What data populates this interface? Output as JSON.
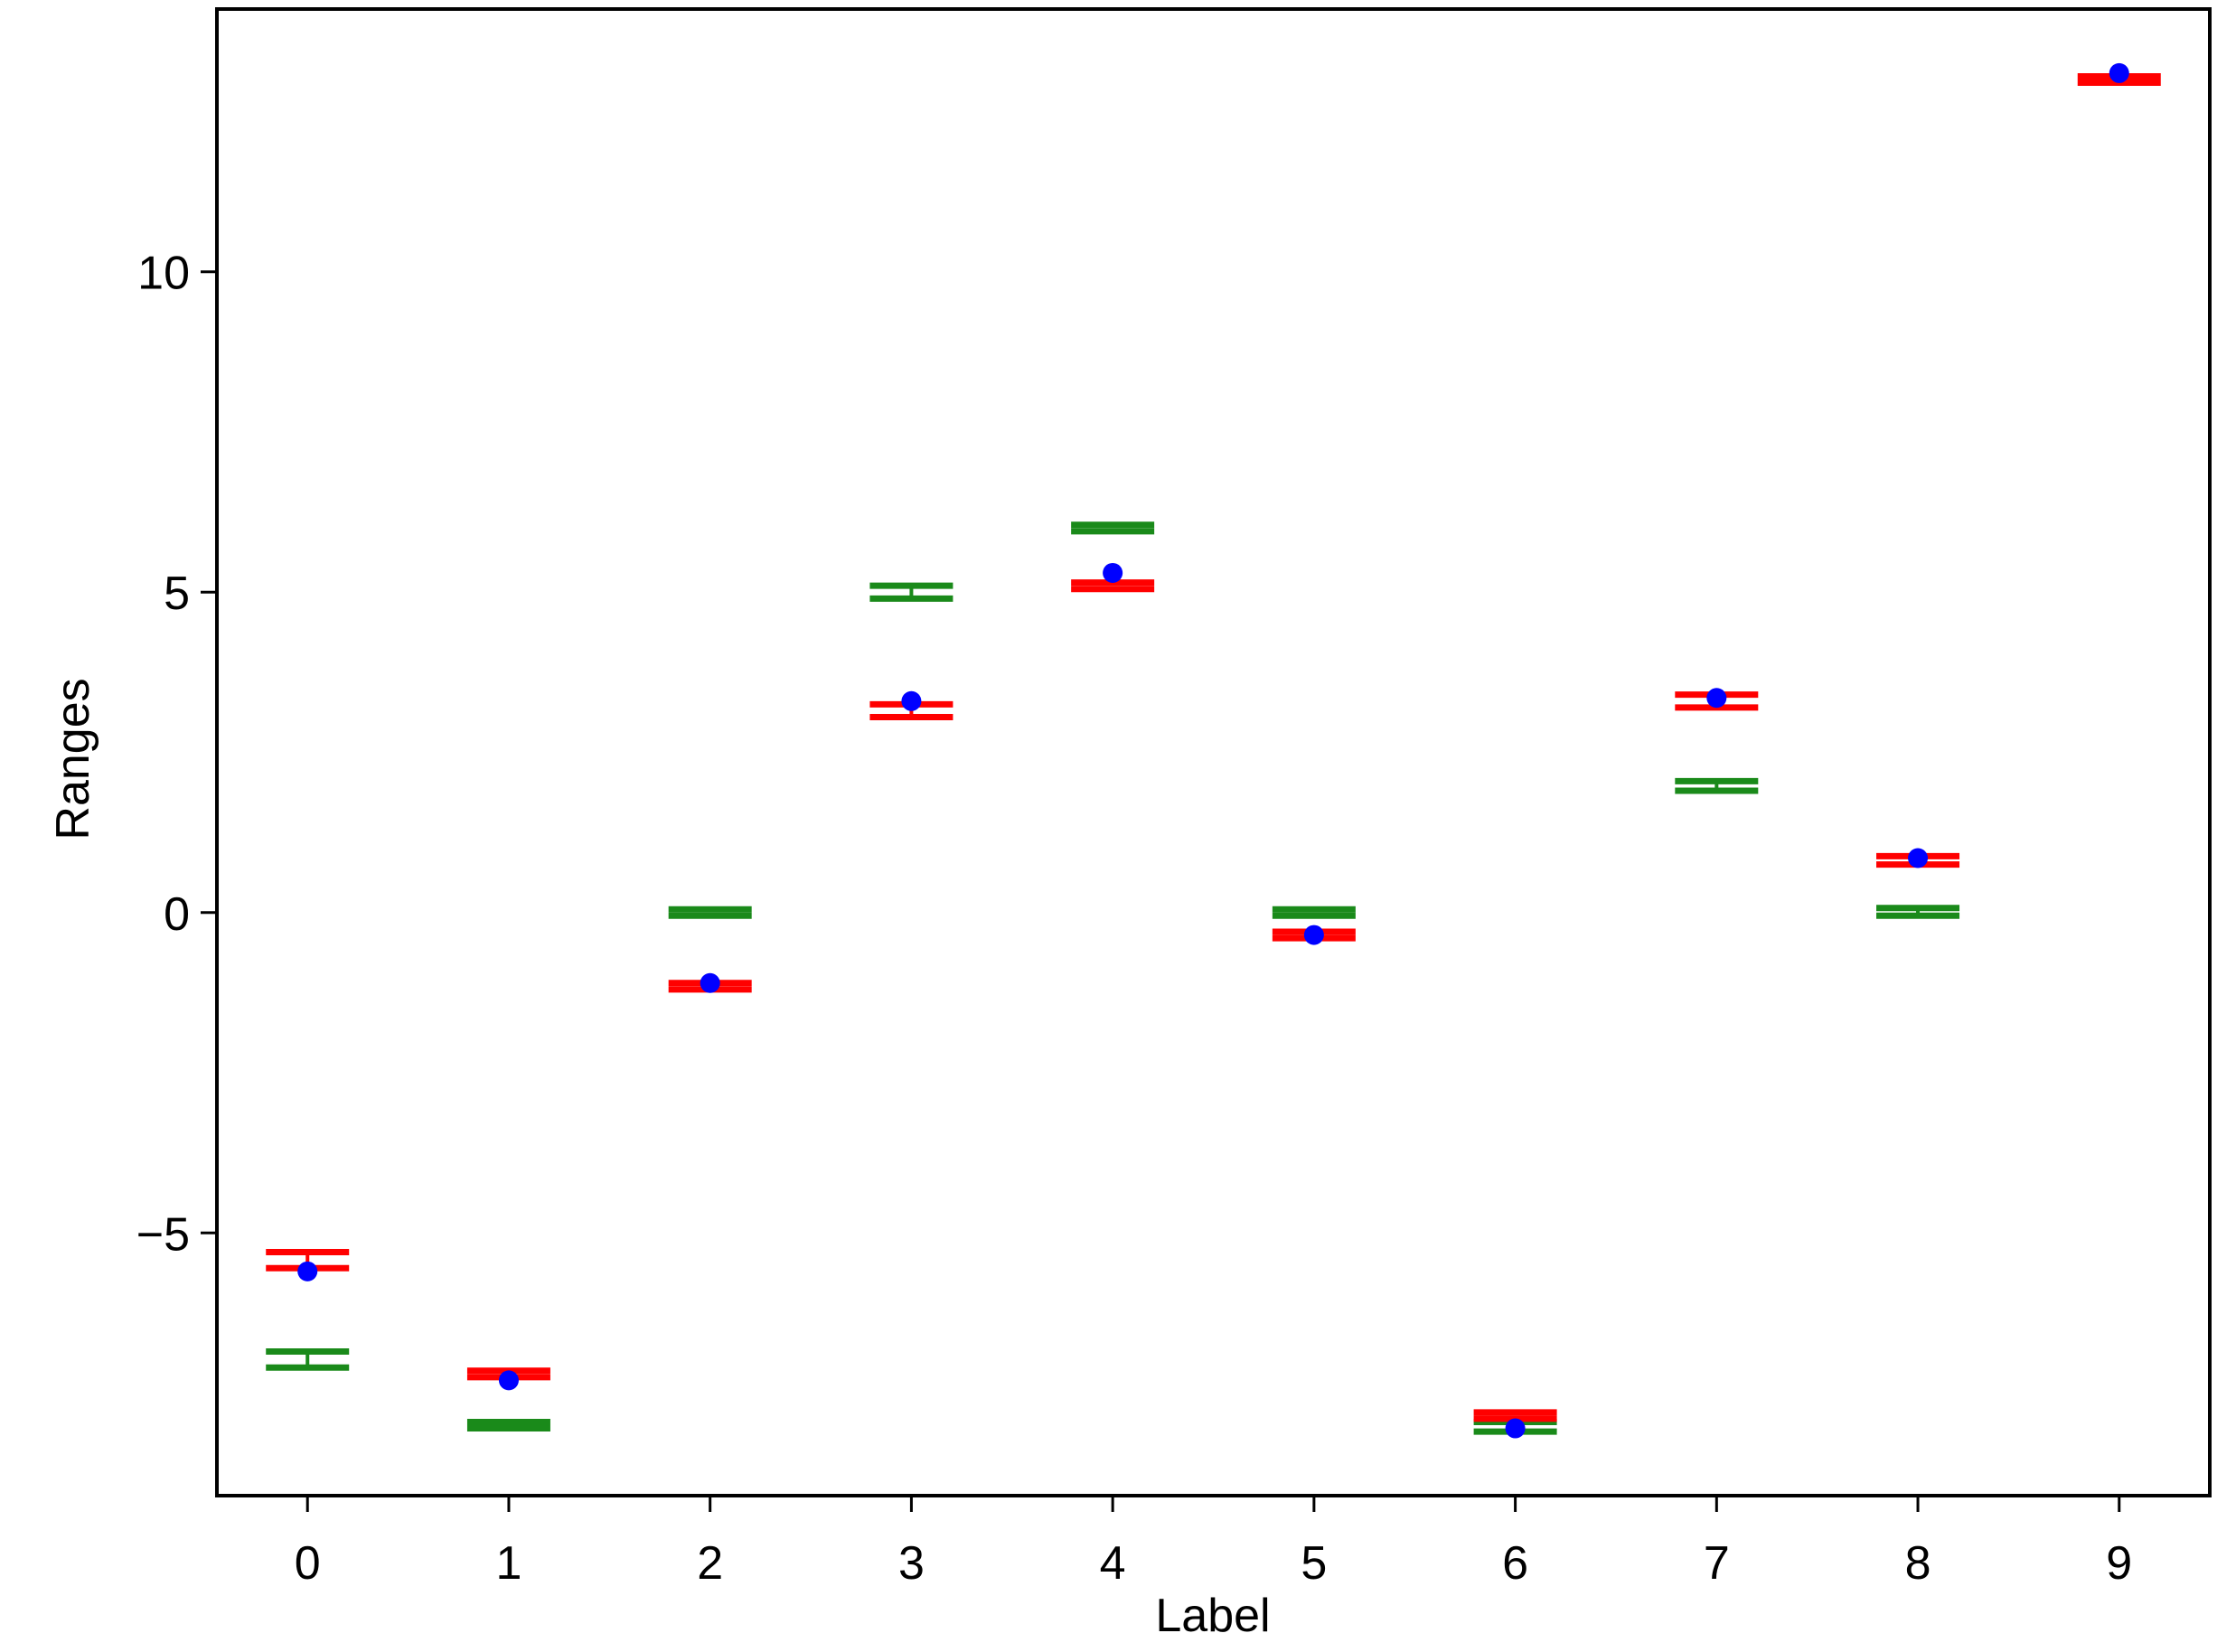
{
  "chart_data": {
    "type": "scatter",
    "xlabel": "Label",
    "ylabel": "Ranges",
    "xlim": [
      -0.45,
      9.45
    ],
    "ylim": [
      -9.1,
      14.1
    ],
    "x_ticks": [
      0,
      1,
      2,
      3,
      4,
      5,
      6,
      7,
      8,
      9
    ],
    "y_ticks": [
      -5,
      0,
      5,
      10
    ],
    "y_tick_labels": [
      "−5",
      "0",
      "5",
      "10"
    ],
    "grid": false,
    "legend": null,
    "points": {
      "color": "#0000ff",
      "x": [
        0,
        1,
        2,
        3,
        4,
        5,
        6,
        7,
        8,
        9
      ],
      "y": [
        -5.6,
        -7.3,
        -1.1,
        3.3,
        5.3,
        -0.35,
        -8.05,
        3.35,
        0.85,
        13.1
      ]
    },
    "range_markers": [
      {
        "color": "#1a8a1a",
        "items": [
          {
            "x": 0,
            "low": -7.1,
            "high": -6.85
          },
          {
            "x": 1,
            "low": -8.05,
            "high": -7.95
          },
          {
            "x": 2,
            "low": -0.05,
            "high": 0.05
          },
          {
            "x": 3,
            "low": 4.9,
            "high": 5.1
          },
          {
            "x": 4,
            "low": 5.95,
            "high": 6.05
          },
          {
            "x": 5,
            "low": -0.05,
            "high": 0.05
          },
          {
            "x": 6,
            "low": -8.1,
            "high": -7.95
          },
          {
            "x": 7,
            "low": 1.9,
            "high": 2.05
          },
          {
            "x": 8,
            "low": -0.05,
            "high": 0.07
          }
        ]
      },
      {
        "color": "#ff0000",
        "items": [
          {
            "x": 0,
            "low": -5.55,
            "high": -5.3
          },
          {
            "x": 1,
            "low": -7.25,
            "high": -7.15
          },
          {
            "x": 2,
            "low": -1.2,
            "high": -1.1
          },
          {
            "x": 3,
            "low": 3.05,
            "high": 3.25
          },
          {
            "x": 4,
            "low": 5.05,
            "high": 5.15
          },
          {
            "x": 5,
            "low": -0.4,
            "high": -0.3
          },
          {
            "x": 6,
            "low": -7.9,
            "high": -7.8
          },
          {
            "x": 7,
            "low": 3.2,
            "high": 3.4
          },
          {
            "x": 8,
            "low": 0.75,
            "high": 0.88
          },
          {
            "x": 9,
            "low": 12.95,
            "high": 13.05
          }
        ]
      }
    ]
  }
}
